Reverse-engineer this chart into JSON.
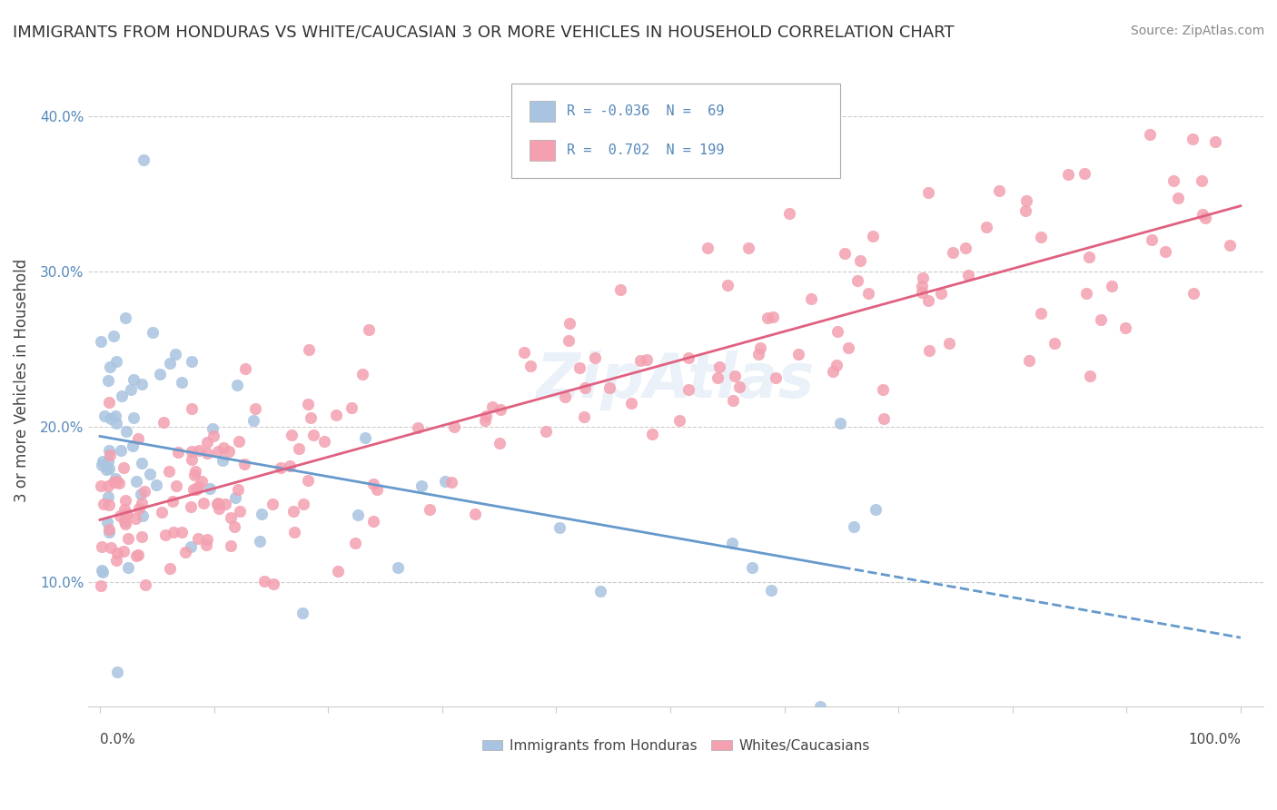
{
  "title": "IMMIGRANTS FROM HONDURAS VS WHITE/CAUCASIAN 3 OR MORE VEHICLES IN HOUSEHOLD CORRELATION CHART",
  "source": "Source: ZipAtlas.com",
  "ylabel": "3 or more Vehicles in Household",
  "yticks": [
    0.1,
    0.2,
    0.3,
    0.4
  ],
  "ytick_labels": [
    "10.0%",
    "20.0%",
    "30.0%",
    "40.0%"
  ],
  "legend_blue_R": "-0.036",
  "legend_blue_N": "69",
  "legend_pink_R": "0.702",
  "legend_pink_N": "199",
  "legend_label_blue": "Immigrants from Honduras",
  "legend_label_pink": "Whites/Caucasians",
  "blue_color": "#a8c4e0",
  "pink_color": "#f4a0b0",
  "blue_line_color": "#6699cc",
  "pink_line_color": "#e06080",
  "text_color": "#5588bb",
  "bg_color": "#ffffff",
  "grid_color": "#cccccc"
}
